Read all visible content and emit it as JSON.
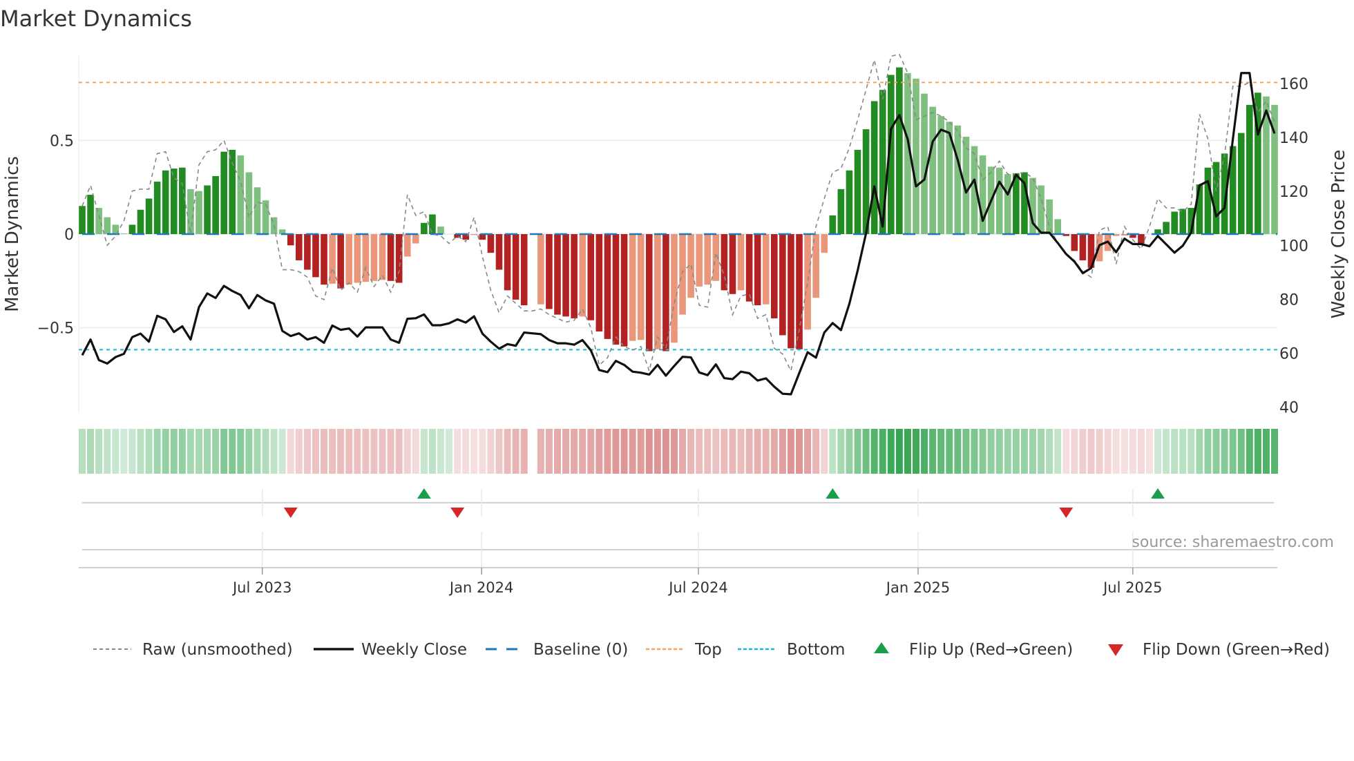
{
  "title": "Market Dynamics",
  "source": "source: sharemaestro.com",
  "chart_data": {
    "type": "bar",
    "title": "Market Dynamics",
    "ylabel": "Market Dynamics",
    "y2label": "Weekly Close Price",
    "ylim": [
      -0.955,
      0.95
    ],
    "y2lim": [
      38,
      170.2
    ],
    "xlim_weeks": [
      -0.4,
      143.4
    ],
    "yticks": [
      {
        "v": 0.5,
        "label": "0.5"
      },
      {
        "v": 0,
        "label": "0"
      },
      {
        "v": -0.5,
        "label": "−0.5"
      }
    ],
    "y2ticks": [
      {
        "v": 40,
        "label": "40"
      },
      {
        "v": 60,
        "label": "60"
      },
      {
        "v": 80,
        "label": "80"
      },
      {
        "v": 100,
        "label": "100"
      },
      {
        "v": 120,
        "label": "120"
      },
      {
        "v": 140,
        "label": "140"
      },
      {
        "v": 160,
        "label": "160"
      }
    ],
    "xticks": [
      {
        "week": 21.6,
        "label": "Jul 2023"
      },
      {
        "week": 47.9,
        "label": "Jan 2024"
      },
      {
        "week": 73.9,
        "label": "Jul 2024"
      },
      {
        "week": 100.25,
        "label": "Jan 2025"
      },
      {
        "week": 126.0,
        "label": "Jul 2025"
      }
    ],
    "grid": true,
    "top_threshold": 0.81,
    "bottom_threshold": -0.617,
    "baseline": 0,
    "series": [
      {
        "name": "Market Dynamics (smoothed)",
        "values": [
          0.15,
          0.21,
          0.14,
          0.09,
          0.05,
          0.003,
          0.05,
          0.13,
          0.19,
          0.28,
          0.34,
          0.35,
          0.355,
          0.24,
          0.23,
          0.26,
          0.31,
          0.44,
          0.45,
          0.42,
          0.33,
          0.25,
          0.18,
          0.09,
          0.025,
          -0.06,
          -0.14,
          -0.19,
          -0.23,
          -0.27,
          -0.265,
          -0.29,
          -0.27,
          -0.26,
          -0.255,
          -0.25,
          -0.245,
          -0.25,
          -0.26,
          -0.12,
          -0.05,
          0.06,
          0.105,
          0.04,
          0.0,
          -0.02,
          -0.03,
          -0.005,
          -0.03,
          -0.1,
          -0.19,
          -0.3,
          -0.35,
          -0.38,
          null,
          -0.375,
          -0.4,
          -0.43,
          -0.44,
          -0.45,
          -0.44,
          -0.46,
          -0.52,
          -0.56,
          -0.59,
          -0.6,
          -0.57,
          -0.565,
          -0.625,
          -0.615,
          -0.625,
          -0.58,
          -0.43,
          -0.34,
          -0.28,
          -0.27,
          -0.25,
          -0.3,
          -0.32,
          -0.3,
          -0.36,
          -0.38,
          -0.375,
          -0.45,
          -0.54,
          -0.61,
          -0.615,
          -0.51,
          -0.34,
          -0.1,
          0.1,
          0.24,
          0.34,
          0.45,
          0.56,
          0.71,
          0.77,
          0.85,
          0.89,
          0.86,
          0.83,
          0.75,
          0.68,
          0.63,
          0.6,
          0.58,
          0.52,
          0.47,
          0.42,
          0.36,
          0.355,
          0.32,
          0.325,
          0.33,
          0.3,
          0.26,
          0.185,
          0.08,
          -0.01,
          -0.09,
          -0.14,
          -0.18,
          -0.145,
          -0.09,
          -0.01,
          -0.008,
          -0.02,
          -0.05,
          0.0,
          0.025,
          0.065,
          0.12,
          0.135,
          0.14,
          0.265,
          0.355,
          0.385,
          0.43,
          0.47,
          0.54,
          0.69,
          0.755,
          0.735,
          0.69
        ]
      },
      {
        "name": "Raw (unsmoothed)",
        "values": [
          0.15,
          0.26,
          0.1,
          -0.06,
          -0.01,
          0.07,
          0.23,
          0.24,
          0.24,
          0.43,
          0.44,
          0.3,
          0.27,
          0.0,
          0.37,
          0.44,
          0.45,
          0.5,
          0.38,
          0.28,
          0.09,
          0.17,
          0.16,
          0.05,
          -0.19,
          -0.19,
          -0.2,
          -0.23,
          -0.33,
          -0.35,
          -0.18,
          -0.3,
          -0.26,
          -0.31,
          -0.18,
          -0.28,
          -0.22,
          -0.31,
          -0.2,
          0.21,
          0.1,
          0.12,
          0.0,
          -0.01,
          -0.05,
          -0.01,
          -0.04,
          0.09,
          -0.12,
          -0.3,
          -0.42,
          -0.33,
          -0.37,
          -0.41,
          -0.41,
          -0.4,
          -0.43,
          -0.45,
          -0.47,
          -0.46,
          -0.4,
          -0.5,
          -0.7,
          -0.66,
          -0.55,
          -0.6,
          -0.62,
          -0.6,
          -0.73,
          -0.55,
          -0.61,
          -0.37,
          -0.2,
          -0.16,
          -0.38,
          -0.39,
          -0.1,
          -0.22,
          -0.43,
          -0.33,
          -0.32,
          -0.45,
          -0.43,
          -0.61,
          -0.64,
          -0.73,
          -0.51,
          -0.26,
          0.04,
          0.19,
          0.33,
          0.35,
          0.46,
          0.61,
          0.77,
          0.93,
          0.72,
          0.95,
          0.96,
          0.86,
          0.61,
          0.63,
          0.65,
          0.63,
          0.6,
          0.55,
          0.46,
          0.43,
          0.29,
          0.33,
          0.39,
          0.32,
          0.32,
          0.33,
          0.3,
          0.19,
          0.04,
          -0.05,
          -0.11,
          -0.14,
          -0.2,
          -0.23,
          0.02,
          0.04,
          -0.16,
          0.04,
          -0.03,
          -0.08,
          0.04,
          0.19,
          0.14,
          0.14,
          0.12,
          0.16,
          0.64,
          0.51,
          0.23,
          0.42,
          0.79,
          0.79,
          0.81,
          0.65,
          0.71,
          0.6
        ]
      },
      {
        "name": "Weekly Close",
        "axis": "right",
        "values": [
          59.3,
          65.1,
          57.5,
          56.2,
          58.6,
          59.8,
          66.0,
          67.3,
          64.3,
          73.9,
          72.6,
          67.9,
          70.0,
          65.1,
          77.1,
          82.2,
          80.5,
          85.0,
          83.1,
          81.6,
          76.7,
          81.6,
          79.6,
          78.4,
          68.3,
          66.4,
          67.4,
          65.1,
          66.0,
          63.9,
          70.3,
          68.7,
          69.2,
          66.2,
          69.6,
          69.6,
          69.6,
          65.1,
          63.9,
          72.8,
          73.0,
          74.4,
          70.4,
          70.4,
          71.1,
          72.6,
          71.4,
          73.7,
          67.3,
          64.3,
          61.7,
          63.4,
          62.8,
          67.7,
          67.4,
          67.1,
          64.9,
          63.7,
          63.7,
          63.2,
          64.9,
          61.1,
          53.8,
          53.0,
          57.2,
          55.7,
          53.2,
          52.8,
          52.1,
          55.7,
          51.7,
          55.3,
          58.7,
          58.5,
          52.9,
          51.9,
          55.9,
          50.8,
          50.4,
          53.2,
          52.6,
          49.9,
          50.7,
          47.6,
          45.0,
          44.8,
          52.7,
          60.4,
          58.4,
          67.7,
          71.2,
          68.6,
          78.3,
          90.7,
          104.4,
          121.9,
          107.0,
          143.2,
          148.3,
          139.4,
          121.9,
          124.4,
          138.5,
          142.9,
          141.7,
          131.7,
          119.6,
          124.4,
          109.1,
          116.5,
          123.6,
          118.9,
          126.2,
          123.1,
          108.3,
          104.7,
          104.7,
          100.9,
          96.8,
          94.0,
          89.7,
          91.6,
          100.1,
          101.4,
          97.5,
          102.5,
          100.5,
          100.5,
          99.7,
          103.5,
          100.4,
          97.3,
          99.9,
          104.8,
          122.3,
          123.8,
          110.8,
          113.9,
          139.4,
          163.9,
          163.9,
          141.1,
          150.0,
          141.5
        ]
      }
    ],
    "flips": [
      {
        "week": 25,
        "type": "down"
      },
      {
        "week": 41,
        "type": "up"
      },
      {
        "week": 45,
        "type": "down"
      },
      {
        "week": 90,
        "type": "up"
      },
      {
        "week": 118,
        "type": "down"
      },
      {
        "week": 129,
        "type": "up"
      }
    ],
    "legend": {
      "placement": "bottom",
      "items": [
        {
          "key": "raw",
          "label": "Raw (unsmoothed)"
        },
        {
          "key": "close",
          "label": "Weekly Close"
        },
        {
          "key": "baseline",
          "label": "Baseline (0)"
        },
        {
          "key": "top",
          "label": "Top"
        },
        {
          "key": "bottom",
          "label": "Bottom"
        },
        {
          "key": "flipup",
          "label": "Flip Up (Red→Green)"
        },
        {
          "key": "flipdown",
          "label": "Flip Down (Green→Red)"
        }
      ]
    }
  },
  "colors": {
    "green_strong": "#228b22",
    "green_weak": "#7fbf7f",
    "red_strong": "#b22222",
    "red_weak": "#e9967a",
    "baseline": "#1f77b4",
    "top": "#f4a460",
    "bottom": "#17becf",
    "close": "#111111",
    "raw": "#888888",
    "flip_up": "#1a9e4a",
    "flip_down": "#d62728",
    "heat_green": "#28a046",
    "heat_red": "#c85050"
  }
}
